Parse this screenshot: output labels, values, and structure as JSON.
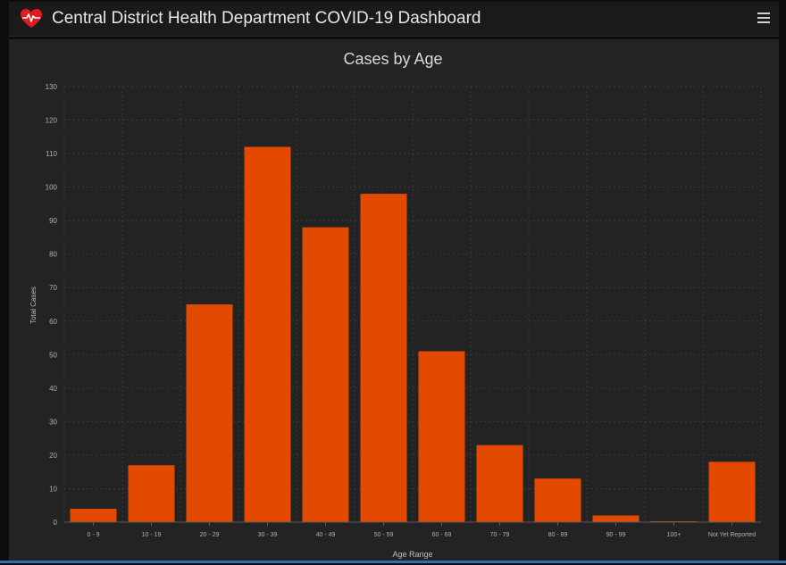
{
  "header": {
    "title": "Central District Health Department COVID-19 Dashboard",
    "logo_icon": "heart-pulse-icon",
    "menu_icon": "hamburger-menu-icon"
  },
  "colors": {
    "bar": "#e34a00",
    "panel": "#232323",
    "header": "#1a1a1a",
    "logo": "#e21b23"
  },
  "chart_data": {
    "type": "bar",
    "title": "Cases by Age",
    "xlabel": "Age Range",
    "ylabel": "Total Cases",
    "categories": [
      "0 - 9",
      "10 - 19",
      "20 - 29",
      "30 - 39",
      "40 - 49",
      "50 - 59",
      "60 - 69",
      "70 - 79",
      "80 - 89",
      "90 - 99",
      "100+",
      "Not Yet Reported"
    ],
    "values": [
      4,
      17,
      65,
      112,
      88,
      98,
      51,
      23,
      13,
      2,
      0,
      18
    ],
    "yticks": [
      0,
      10,
      20,
      30,
      40,
      50,
      60,
      70,
      80,
      90,
      100,
      110,
      120,
      130
    ],
    "ylim": [
      0,
      130
    ],
    "grid": true,
    "legend": "none"
  }
}
